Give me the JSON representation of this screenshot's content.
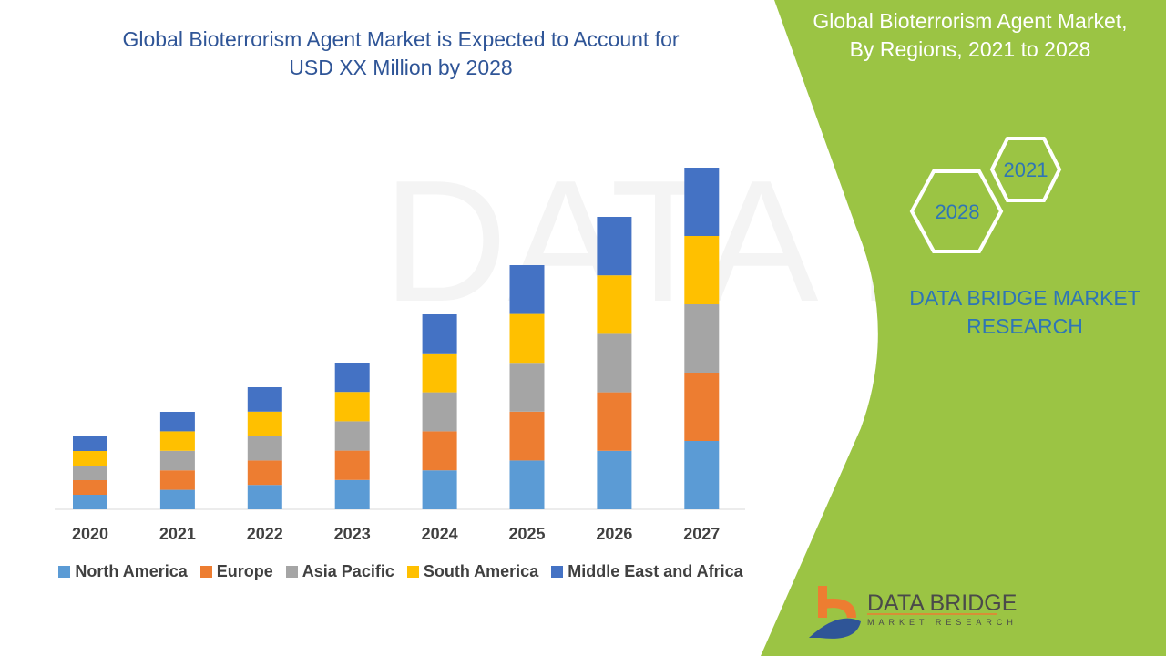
{
  "header": {
    "title_line1": "Global Bioterrorism Agent Market is Expected to Account for",
    "title_line2": "USD XX Million by 2028"
  },
  "panel": {
    "title_line1": "Global Bioterrorism Agent Market,",
    "title_line2": "By Regions, 2021 to 2028",
    "hex_years": [
      "2021",
      "2028"
    ],
    "brand_line1": "DATA BRIDGE MARKET",
    "brand_line2": "RESEARCH",
    "logo_text": "DATA BRIDGE",
    "logo_sub": "MARKET RESEARCH",
    "color": "#9bc444"
  },
  "chart_data": {
    "type": "bar",
    "stacked": true,
    "title": "",
    "xlabel": "",
    "ylabel": "",
    "grid": false,
    "legend": "bottom",
    "categories": [
      "2020",
      "2021",
      "2022",
      "2023",
      "2024",
      "2025",
      "2026",
      "2027"
    ],
    "series": [
      {
        "name": "North America",
        "color": "#5b9bd5",
        "values": [
          16,
          21.4,
          26.8,
          32.2,
          42.8,
          53.6,
          64.2,
          75
        ]
      },
      {
        "name": "Europe",
        "color": "#ed7d31",
        "values": [
          16,
          21.4,
          26.8,
          32.2,
          42.8,
          53.6,
          64.2,
          75
        ]
      },
      {
        "name": "Asia Pacific",
        "color": "#a5a5a5",
        "values": [
          16,
          21.4,
          26.8,
          32.2,
          42.8,
          53.6,
          64.2,
          75
        ]
      },
      {
        "name": "South America",
        "color": "#ffc000",
        "values": [
          16,
          21.4,
          26.8,
          32.2,
          42.8,
          53.6,
          64.2,
          75
        ]
      },
      {
        "name": "Middle East and Africa",
        "color": "#4472c4",
        "values": [
          16,
          21.4,
          26.8,
          32.2,
          42.8,
          53.6,
          64.2,
          75
        ]
      }
    ]
  }
}
